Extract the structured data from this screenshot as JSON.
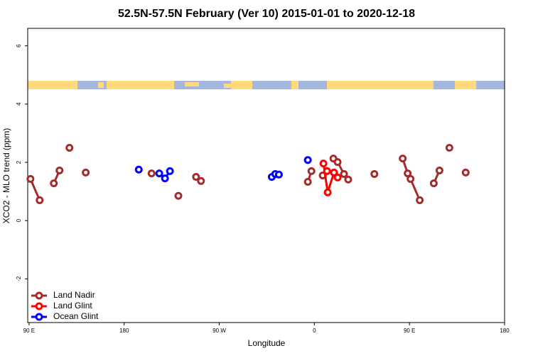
{
  "chart_data": {
    "type": "line",
    "title": "52.5N-57.5N February (Ver 10)   2015-01-01 to 2020-12-18",
    "x_label": "Longitude",
    "y_label": "XCO2 - MLO trend (ppm)",
    "xlim": [
      88.7,
      540
    ],
    "ylim": [
      -3.5,
      6.6
    ],
    "xticks": [
      {
        "value": 90,
        "label": "90 E"
      },
      180,
      {
        "value": 270,
        "label": "90 W"
      },
      {
        "value": 360,
        "label": "0"
      },
      {
        "value": 450,
        "label": "90 E"
      },
      {
        "value": 540,
        "label": "180"
      }
    ],
    "yticks": [
      -2,
      0,
      2,
      4,
      6
    ],
    "legend": "bottom-left",
    "series": [
      {
        "name": "Land Nadir",
        "color": "#a52a2a",
        "x": [
          91.3,
          100,
          null,
          113.4,
          118.8,
          null,
          128.2,
          null,
          143.6,
          null,
          205.9,
          null,
          231.3,
          null,
          248,
          252.7,
          null,
          353.8,
          357.2,
          null,
          367.9,
          null,
          378,
          382,
          388,
          392,
          null,
          416.8,
          null,
          443.6,
          448.3,
          451,
          459.7,
          null,
          473,
          478.4,
          null,
          487.8,
          null,
          503.2
        ],
        "values": [
          1.43,
          0.7,
          null,
          1.28,
          1.72,
          null,
          2.5,
          null,
          1.65,
          null,
          1.62,
          null,
          0.85,
          null,
          1.5,
          1.36,
          null,
          1.33,
          1.7,
          null,
          1.55,
          null,
          2.13,
          2.01,
          1.6,
          1.41,
          null,
          1.6,
          null,
          2.13,
          1.62,
          1.43,
          0.7,
          null,
          1.28,
          1.72,
          null,
          2.5,
          null,
          1.65
        ]
      },
      {
        "name": "Land Glint",
        "color": "#ff0000",
        "x": [
          368.6,
          372.6,
          378.6,
          382,
          null,
          372
        ],
        "values": [
          1.96,
          0.97,
          1.65,
          1.48,
          null,
          1.7
        ]
      },
      {
        "name": "Ocean Glint",
        "color": "#0000ff",
        "x": [
          193.8,
          null,
          213.2,
          218.6,
          223.3,
          null,
          319.7,
          323,
          326.4,
          null,
          353.8
        ],
        "values": [
          1.75,
          null,
          1.62,
          1.45,
          1.7,
          null,
          1.5,
          1.6,
          1.58,
          null,
          2.08
        ]
      }
    ]
  }
}
